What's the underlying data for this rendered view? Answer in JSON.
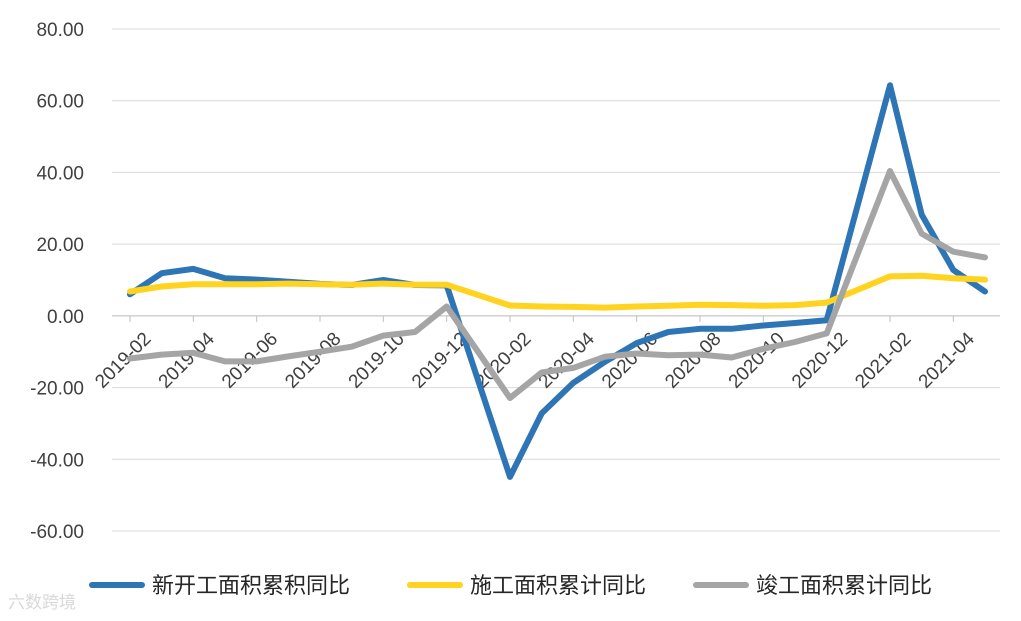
{
  "chart_data": {
    "type": "line",
    "x": [
      "2019-02",
      "2019-03",
      "2019-04",
      "2019-05",
      "2019-06",
      "2019-07",
      "2019-08",
      "2019-09",
      "2019-10",
      "2019-11",
      "2019-12",
      "2020-01",
      "2020-02",
      "2020-03",
      "2020-04",
      "2020-05",
      "2020-06",
      "2020-07",
      "2020-08",
      "2020-09",
      "2020-10",
      "2020-11",
      "2020-12",
      "2021-01",
      "2021-02",
      "2021-03",
      "2021-04",
      "2021-05"
    ],
    "xticks": [
      "2019-02",
      "2019-04",
      "2019-06",
      "2019-08",
      "2019-10",
      "2019-12",
      "2020-02",
      "2020-04",
      "2020-06",
      "2020-08",
      "2020-10",
      "2020-12",
      "2021-02",
      "2021-04"
    ],
    "yticks": [
      "80.00",
      "60.00",
      "40.00",
      "20.00",
      "0.00",
      "-20.00",
      "-40.00",
      "-60.00"
    ],
    "ylim": [
      -60,
      80
    ],
    "grid": true,
    "legend_position": "bottom",
    "series": [
      {
        "name": "新开工面积累积同比",
        "color": "#2E75B6",
        "values": [
          6.0,
          11.9,
          13.1,
          10.5,
          10.1,
          9.5,
          8.9,
          8.6,
          10.0,
          8.6,
          8.5,
          null,
          -44.9,
          -27.2,
          -18.7,
          -12.8,
          -7.6,
          -4.5,
          -3.6,
          -3.6,
          -2.7,
          -2.0,
          -1.2,
          null,
          64.3,
          28.2,
          12.8,
          6.8
        ]
      },
      {
        "name": "施工面积累计同比",
        "color": "#FFD320",
        "values": [
          6.8,
          8.2,
          8.8,
          8.8,
          8.8,
          9.0,
          8.8,
          8.7,
          9.0,
          8.7,
          8.7,
          null,
          2.9,
          2.6,
          2.5,
          2.3,
          2.6,
          2.8,
          3.1,
          3.0,
          2.8,
          3.0,
          3.7,
          null,
          11.0,
          11.2,
          10.5,
          10.1
        ]
      },
      {
        "name": "竣工面积累计同比",
        "color": "#A5A5A5",
        "values": [
          -11.9,
          -10.8,
          -10.3,
          -12.7,
          -12.7,
          -11.3,
          -10.0,
          -8.6,
          -5.5,
          -4.5,
          2.6,
          null,
          -22.9,
          -15.8,
          -14.5,
          -11.4,
          -10.5,
          -11.0,
          -10.8,
          -11.6,
          -9.2,
          -7.3,
          -4.9,
          null,
          40.4,
          22.9,
          17.9,
          16.3
        ]
      }
    ]
  },
  "watermark": "六数跨境"
}
